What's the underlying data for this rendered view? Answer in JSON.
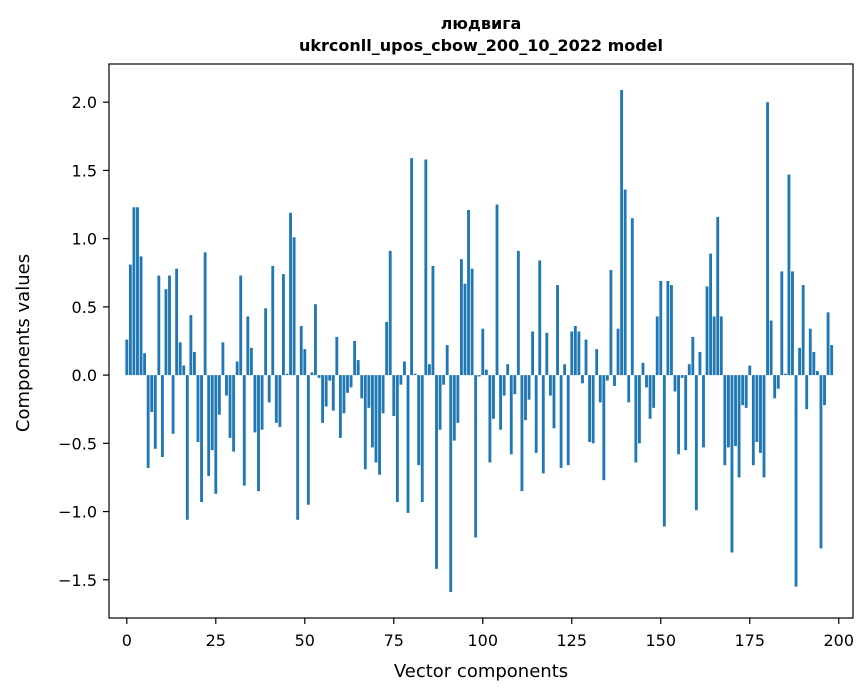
{
  "chart_data": {
    "type": "bar",
    "title": "людвига",
    "subtitle": "ukrconll_upos_cbow_200_10_2022 model",
    "xlabel": "Vector components",
    "ylabel": "Components values",
    "xlim": [
      -5,
      204
    ],
    "ylim": [
      -1.78,
      2.28
    ],
    "xticks": [
      0,
      25,
      50,
      75,
      100,
      125,
      150,
      175,
      200
    ],
    "yticks": [
      -1.5,
      -1.0,
      -0.5,
      0.0,
      0.5,
      1.0,
      1.5,
      2.0
    ],
    "ytick_labels": [
      "−1.5",
      "−1.0",
      "−0.5",
      "0.0",
      "0.5",
      "1.0",
      "1.5",
      "2.0"
    ],
    "bar_color": "#1f77b4",
    "grid": false,
    "series": [
      {
        "name": "людвига",
        "values": [
          0.26,
          0.81,
          1.23,
          1.23,
          0.87,
          0.16,
          -0.68,
          -0.27,
          -0.54,
          0.73,
          -0.6,
          0.63,
          0.73,
          -0.43,
          0.78,
          0.24,
          0.07,
          -1.06,
          0.44,
          0.17,
          -0.49,
          -0.93,
          0.9,
          -0.74,
          -0.55,
          -0.87,
          -0.29,
          0.24,
          -0.15,
          -0.46,
          -0.56,
          0.1,
          0.73,
          -0.81,
          0.43,
          0.2,
          -0.42,
          -0.85,
          -0.4,
          0.49,
          -0.2,
          0.8,
          -0.35,
          -0.38,
          0.74,
          0.01,
          1.19,
          1.01,
          -1.06,
          0.36,
          0.19,
          -0.95,
          0.02,
          0.52,
          -0.02,
          -0.35,
          -0.23,
          -0.04,
          -0.26,
          0.28,
          -0.46,
          -0.28,
          -0.13,
          -0.09,
          0.25,
          0.11,
          -0.17,
          -0.69,
          -0.24,
          -0.53,
          -0.64,
          -0.73,
          -0.28,
          0.39,
          0.91,
          -0.3,
          -0.93,
          -0.07,
          0.1,
          -1.01,
          1.59,
          0.01,
          -0.66,
          -0.93,
          1.58,
          0.08,
          0.8,
          -1.42,
          -0.4,
          -0.07,
          0.22,
          -1.59,
          -0.48,
          -0.35,
          0.85,
          0.67,
          1.21,
          0.78,
          -1.19,
          -0.01,
          0.34,
          0.04,
          -0.64,
          -0.32,
          1.25,
          -0.4,
          -0.15,
          0.08,
          -0.58,
          -0.14,
          0.91,
          -0.85,
          -0.33,
          -0.18,
          0.32,
          -0.57,
          0.84,
          -0.72,
          0.31,
          -0.15,
          -0.39,
          0.66,
          -0.68,
          0.08,
          -0.66,
          0.32,
          0.36,
          0.32,
          -0.06,
          0.26,
          -0.49,
          -0.5,
          0.19,
          -0.2,
          -0.77,
          -0.04,
          0.77,
          -0.08,
          0.34,
          2.09,
          1.36,
          -0.2,
          1.15,
          -0.64,
          -0.5,
          0.09,
          -0.09,
          -0.32,
          -0.24,
          0.43,
          0.69,
          -1.11,
          0.69,
          0.66,
          -0.12,
          -0.58,
          -0.02,
          -0.55,
          0.08,
          0.28,
          -0.99,
          0.17,
          -0.53,
          0.65,
          0.89,
          0.43,
          1.16,
          0.43,
          -0.66,
          -0.53,
          -1.3,
          -0.52,
          -0.75,
          -0.22,
          -0.24,
          0.07,
          -0.66,
          -0.49,
          -0.57,
          -0.75,
          2.0,
          0.4,
          -0.17,
          -0.1,
          0.76,
          0.01,
          1.47,
          0.76,
          -1.55,
          0.2,
          0.66,
          -0.25,
          0.34,
          0.17,
          0.03,
          -1.27,
          -0.22,
          0.46,
          0.22
        ]
      }
    ]
  }
}
